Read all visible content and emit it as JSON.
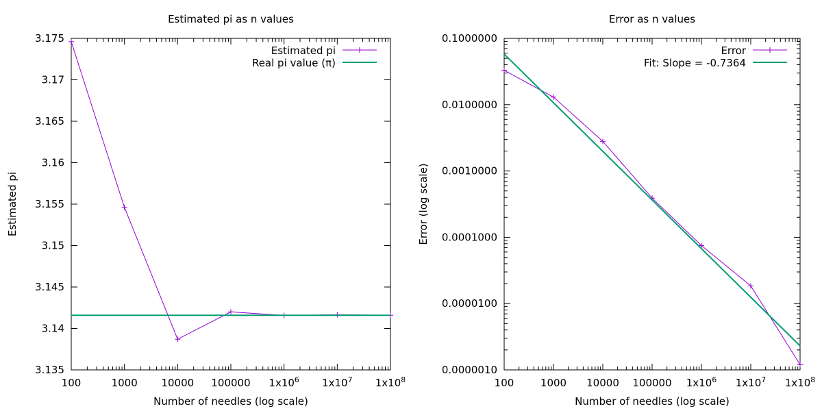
{
  "chart_data": [
    {
      "type": "line",
      "title": "Estimated pi as n values",
      "xlabel": "Number of needles (log scale)",
      "ylabel": "Estimated pi",
      "x_scale": "log",
      "xlim": [
        100,
        100000000
      ],
      "ylim": [
        3.135,
        3.175
      ],
      "grid": false,
      "legend_position": "top-right",
      "x_tick_values": [
        100,
        1000,
        10000,
        100000,
        1000000,
        10000000,
        100000000
      ],
      "x_tick_labels": [
        {
          "base": "100",
          "exp": ""
        },
        {
          "base": "1000",
          "exp": ""
        },
        {
          "base": "10000",
          "exp": ""
        },
        {
          "base": "100000",
          "exp": ""
        },
        {
          "base": "1x10",
          "exp": "6"
        },
        {
          "base": "1x10",
          "exp": "7"
        },
        {
          "base": "1x10",
          "exp": "8"
        }
      ],
      "y_tick_values": [
        3.135,
        3.14,
        3.145,
        3.15,
        3.155,
        3.16,
        3.165,
        3.17,
        3.175
      ],
      "y_tick_labels": [
        "3.135",
        "3.14",
        "3.145",
        "3.15",
        "3.155",
        "3.16",
        "3.165",
        "3.17",
        "3.175"
      ],
      "series": [
        {
          "name": "Estimated pi",
          "style": "line-points",
          "color": "#9400d3",
          "x": [
            100,
            1000,
            10000,
            100000,
            1000000,
            10000000,
            100000000
          ],
          "y": [
            3.1746,
            3.1546,
            3.1387,
            3.142,
            3.14157,
            3.14165,
            3.14159
          ]
        },
        {
          "name": "Real pi value (π)",
          "style": "line",
          "color": "#009e73",
          "x": [
            100,
            100000000
          ],
          "y": [
            3.14159,
            3.14159
          ]
        }
      ]
    },
    {
      "type": "line",
      "title": "Error as n values",
      "xlabel": "Number of needles (log scale)",
      "ylabel": "Error (log scale)",
      "x_scale": "log",
      "y_scale": "log",
      "xlim": [
        100,
        100000000
      ],
      "ylim": [
        1e-06,
        0.1
      ],
      "grid": false,
      "legend_position": "top-right",
      "x_tick_values": [
        100,
        1000,
        10000,
        100000,
        1000000,
        10000000,
        100000000
      ],
      "x_tick_labels": [
        {
          "base": "100",
          "exp": ""
        },
        {
          "base": "1000",
          "exp": ""
        },
        {
          "base": "10000",
          "exp": ""
        },
        {
          "base": "100000",
          "exp": ""
        },
        {
          "base": "1x10",
          "exp": "6"
        },
        {
          "base": "1x10",
          "exp": "7"
        },
        {
          "base": "1x10",
          "exp": "8"
        }
      ],
      "y_tick_values": [
        1e-06,
        1e-05,
        0.0001,
        0.001,
        0.01,
        0.1
      ],
      "y_tick_labels": [
        "0.0000010",
        "0.0000100",
        "0.0001000",
        "0.0010000",
        "0.0100000",
        "0.1000000"
      ],
      "series": [
        {
          "name": "Error",
          "style": "line-points",
          "color": "#9400d3",
          "x": [
            100,
            1000,
            10000,
            100000,
            1000000,
            10000000,
            100000000
          ],
          "y": [
            0.033,
            0.013,
            0.0028,
            0.00039,
            7.5e-05,
            1.85e-05,
            1.2e-06
          ]
        },
        {
          "name": "Fit: Slope = -0.7364",
          "style": "line",
          "color": "#009e73",
          "x": [
            100,
            100000000
          ],
          "y": [
            0.058,
            2.3e-06
          ]
        }
      ]
    }
  ]
}
